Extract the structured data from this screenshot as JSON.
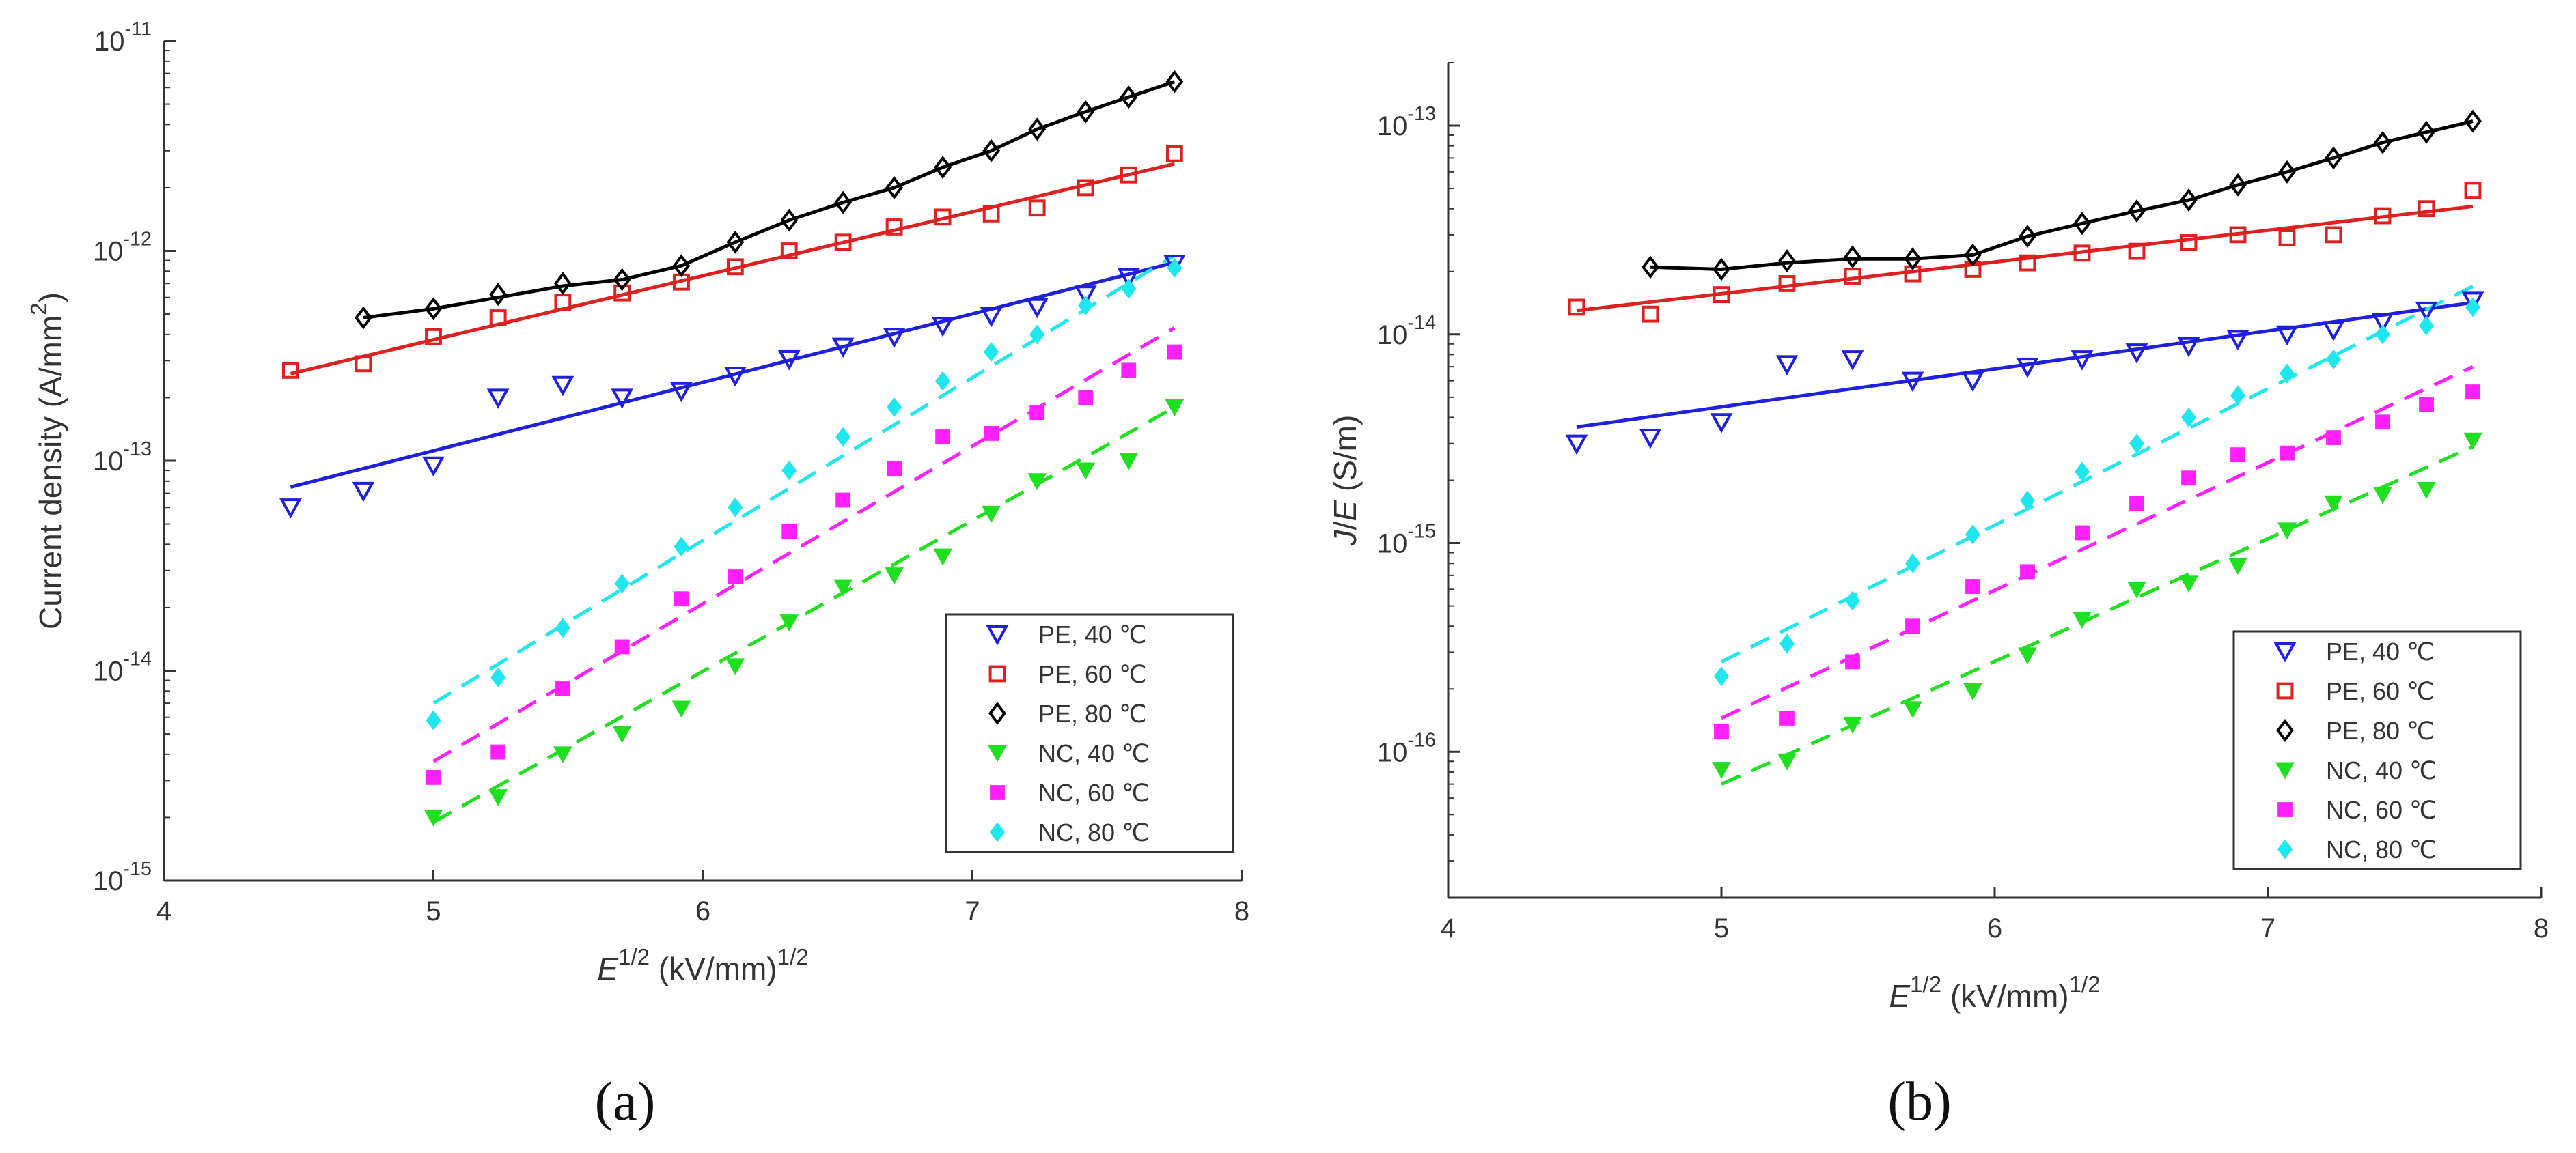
{
  "chart_data": [
    {
      "id": "a",
      "type": "scatter",
      "caption": "(a)",
      "title": "",
      "xlabel": {
        "base": "E",
        "sup": "1/2",
        "unit": " (kV/mm)",
        "unit_sup": "1/2"
      },
      "ylabel": {
        "text": "Current density (A/mm",
        "sup": "2",
        "close": ")",
        "italic_parts": []
      },
      "xlim": [
        4,
        8
      ],
      "ylim": [
        1e-15,
        1e-11
      ],
      "yscale": "log",
      "xticks": [
        4,
        5,
        6,
        7,
        8
      ],
      "xtick_labels": [
        "4",
        "5",
        "6",
        "7",
        "8"
      ],
      "yticks": [
        {
          "value": 1e-15,
          "base": "10",
          "exp": "-15"
        },
        {
          "value": 1e-14,
          "base": "10",
          "exp": "-14"
        },
        {
          "value": 1e-13,
          "base": "10",
          "exp": "-13"
        },
        {
          "value": 1e-12,
          "base": "10",
          "exp": "-12"
        },
        {
          "value": 1e-11,
          "base": "10",
          "exp": "-11"
        }
      ],
      "legend": {
        "position": "bottom-right",
        "entries": [
          "PE, 40 ℃",
          "PE, 60 ℃",
          "PE, 80 ℃",
          "NC, 40 ℃",
          "NC, 60 ℃",
          "NC, 80 ℃"
        ]
      },
      "series": [
        {
          "name": "PE, 40 ℃",
          "color": "#1f1fe0",
          "marker": "triangle-down-open",
          "line": "solid",
          "x": [
            4.47,
            4.74,
            5.0,
            5.24,
            5.48,
            5.7,
            5.92,
            6.12,
            6.32,
            6.52,
            6.71,
            6.89,
            7.07,
            7.24,
            7.42,
            7.58,
            7.75
          ],
          "y": [
            6e-14,
            7.2e-14,
            9.5e-14,
            2e-13,
            2.3e-13,
            2e-13,
            2.15e-13,
            2.55e-13,
            3.05e-13,
            3.5e-13,
            3.9e-13,
            4.4e-13,
            4.9e-13,
            5.4e-13,
            6.2e-13,
            7.5e-13,
            8.7e-13
          ],
          "fit": {
            "x": [
              4.47,
              7.75
            ],
            "y": [
              7.5e-14,
              8.8e-13
            ]
          }
        },
        {
          "name": "PE, 60 ℃",
          "color": "#e01f1f",
          "marker": "square-open",
          "line": "solid",
          "x": [
            4.47,
            4.74,
            5.0,
            5.24,
            5.48,
            5.7,
            5.92,
            6.12,
            6.32,
            6.52,
            6.71,
            6.89,
            7.07,
            7.24,
            7.42,
            7.58,
            7.75
          ],
          "y": [
            2.7e-13,
            2.9e-13,
            3.9e-13,
            4.8e-13,
            5.7e-13,
            6.3e-13,
            7.1e-13,
            8.4e-13,
            1e-12,
            1.1e-12,
            1.3e-12,
            1.45e-12,
            1.5e-12,
            1.6e-12,
            2e-12,
            2.3e-12,
            2.9e-12
          ],
          "fit": {
            "x": [
              4.47,
              7.75
            ],
            "y": [
              2.6e-13,
              2.6e-12
            ]
          }
        },
        {
          "name": "PE, 80 ℃",
          "color": "#000000",
          "marker": "diamond-open",
          "line": "solid",
          "x": [
            4.74,
            5.0,
            5.24,
            5.48,
            5.7,
            5.92,
            6.12,
            6.32,
            6.52,
            6.71,
            6.89,
            7.07,
            7.24,
            7.42,
            7.58,
            7.75
          ],
          "y": [
            4.8e-13,
            5.3e-13,
            6.2e-13,
            7e-13,
            7.3e-13,
            8.5e-13,
            1.1e-12,
            1.4e-12,
            1.7e-12,
            2e-12,
            2.5e-12,
            3e-12,
            3.8e-12,
            4.6e-12,
            5.4e-12,
            6.4e-12
          ],
          "fit": {
            "x": [
              4.74,
              5.0,
              5.24,
              5.48,
              5.7,
              5.92,
              6.12,
              6.32,
              6.52,
              6.71,
              6.89,
              7.07,
              7.24,
              7.42,
              7.58,
              7.75
            ],
            "y": [
              4.8e-13,
              5.3e-13,
              6e-13,
              6.8e-13,
              7.3e-13,
              8.5e-13,
              1.1e-12,
              1.4e-12,
              1.7e-12,
              2e-12,
              2.5e-12,
              3e-12,
              3.8e-12,
              4.6e-12,
              5.4e-12,
              6.4e-12
            ]
          }
        },
        {
          "name": "NC, 40 ℃",
          "color": "#1ee01e",
          "marker": "triangle-down-filled",
          "line": "dashed",
          "x": [
            5.0,
            5.24,
            5.48,
            5.7,
            5.92,
            6.12,
            6.32,
            6.52,
            6.71,
            6.89,
            7.07,
            7.24,
            7.42,
            7.58,
            7.75
          ],
          "y": [
            2e-15,
            2.5e-15,
            4e-15,
            5e-15,
            6.6e-15,
            1.05e-14,
            1.7e-14,
            2.5e-14,
            2.85e-14,
            3.5e-14,
            5.6e-14,
            8e-14,
            9e-14,
            1e-13,
            1.8e-13
          ],
          "fit": {
            "x": [
              5.0,
              7.75
            ],
            "y": [
              1.9e-15,
              1.8e-13
            ]
          }
        },
        {
          "name": "NC, 60 ℃",
          "color": "#ff1fff",
          "marker": "square-filled",
          "line": "dashed",
          "x": [
            5.0,
            5.24,
            5.48,
            5.7,
            5.92,
            6.12,
            6.32,
            6.52,
            6.71,
            6.89,
            7.07,
            7.24,
            7.42,
            7.58,
            7.75
          ],
          "y": [
            3.1e-15,
            4.1e-15,
            8.2e-15,
            1.3e-14,
            2.2e-14,
            2.8e-14,
            4.6e-14,
            6.5e-14,
            9.2e-14,
            1.3e-13,
            1.35e-13,
            1.7e-13,
            2e-13,
            2.7e-13,
            3.3e-13
          ],
          "fit": {
            "x": [
              5.0,
              7.75
            ],
            "y": [
              3.7e-15,
              4.3e-13
            ]
          }
        },
        {
          "name": "NC, 80 ℃",
          "color": "#1ee8ee",
          "marker": "diamond-filled",
          "line": "dashed",
          "x": [
            5.0,
            5.24,
            5.48,
            5.7,
            5.92,
            6.12,
            6.32,
            6.52,
            6.71,
            6.89,
            7.07,
            7.24,
            7.42,
            7.58,
            7.75
          ],
          "y": [
            5.8e-15,
            9.3e-15,
            1.6e-14,
            2.6e-14,
            3.9e-14,
            6e-14,
            9e-14,
            1.3e-13,
            1.8e-13,
            2.4e-13,
            3.3e-13,
            4e-13,
            5.5e-13,
            6.6e-13,
            8.3e-13
          ],
          "fit": {
            "x": [
              5.0,
              7.75
            ],
            "y": [
              7e-15,
              9.5e-13
            ]
          }
        }
      ]
    },
    {
      "id": "b",
      "type": "scatter",
      "caption": "(b)",
      "title": "",
      "xlabel": {
        "base": "E",
        "sup": "1/2",
        "unit": " (kV/mm)",
        "unit_sup": "1/2"
      },
      "ylabel": {
        "text": "J/E (S/m)",
        "italic_parts": [
          "J",
          "E"
        ]
      },
      "xlim": [
        4,
        8
      ],
      "ylim": [
        2e-17,
        2e-13
      ],
      "yscale": "log",
      "xticks": [
        4,
        5,
        6,
        7,
        8
      ],
      "xtick_labels": [
        "4",
        "5",
        "6",
        "7",
        "8"
      ],
      "yticks": [
        {
          "value": 1e-16,
          "base": "10",
          "exp": "-16"
        },
        {
          "value": 1e-15,
          "base": "10",
          "exp": "-15"
        },
        {
          "value": 1e-14,
          "base": "10",
          "exp": "-14"
        },
        {
          "value": 1e-13,
          "base": "10",
          "exp": "-13"
        }
      ],
      "legend": {
        "position": "bottom-right",
        "entries": [
          "PE, 40 ℃",
          "PE, 60 ℃",
          "PE, 80 ℃",
          "NC, 40 ℃",
          "NC, 60 ℃",
          "NC, 80 ℃"
        ]
      },
      "series": [
        {
          "name": "PE, 40 ℃",
          "color": "#1f1fe0",
          "marker": "triangle-down-open",
          "line": "solid",
          "x": [
            4.47,
            4.74,
            5.0,
            5.24,
            5.48,
            5.7,
            5.92,
            6.12,
            6.32,
            6.52,
            6.71,
            6.89,
            7.07,
            7.24,
            7.42,
            7.58,
            7.75
          ],
          "y": [
            3e-15,
            3.2e-15,
            3.8e-15,
            7.2e-15,
            7.6e-15,
            6e-15,
            6e-15,
            7e-15,
            7.6e-15,
            8.2e-15,
            8.8e-15,
            9.5e-15,
            1e-14,
            1.05e-14,
            1.15e-14,
            1.3e-14,
            1.45e-14
          ],
          "fit": {
            "x": [
              4.47,
              7.75
            ],
            "y": [
              3.6e-15,
              1.42e-14
            ]
          }
        },
        {
          "name": "PE, 60 ℃",
          "color": "#e01f1f",
          "marker": "square-open",
          "line": "solid",
          "x": [
            4.47,
            4.74,
            5.0,
            5.24,
            5.48,
            5.7,
            5.92,
            6.12,
            6.32,
            6.52,
            6.71,
            6.89,
            7.07,
            7.24,
            7.42,
            7.58,
            7.75
          ],
          "y": [
            1.35e-14,
            1.25e-14,
            1.55e-14,
            1.75e-14,
            1.9e-14,
            1.95e-14,
            2.05e-14,
            2.2e-14,
            2.45e-14,
            2.5e-14,
            2.75e-14,
            3e-14,
            2.9e-14,
            3e-14,
            3.7e-14,
            4e-14,
            4.9e-14
          ],
          "fit": {
            "x": [
              4.47,
              7.75
            ],
            "y": [
              1.3e-14,
              4.1e-14
            ]
          }
        },
        {
          "name": "PE, 80 ℃",
          "color": "#000000",
          "marker": "diamond-open",
          "line": "solid",
          "x": [
            4.74,
            5.0,
            5.24,
            5.48,
            5.7,
            5.92,
            6.12,
            6.32,
            6.52,
            6.71,
            6.89,
            7.07,
            7.24,
            7.42,
            7.58,
            7.75
          ],
          "y": [
            2.1e-14,
            2.05e-14,
            2.25e-14,
            2.35e-14,
            2.3e-14,
            2.4e-14,
            2.95e-14,
            3.4e-14,
            3.9e-14,
            4.4e-14,
            5.2e-14,
            6e-14,
            7e-14,
            8.3e-14,
            9.3e-14,
            1.05e-13
          ],
          "fit": {
            "x": [
              4.74,
              5.0,
              5.24,
              5.48,
              5.7,
              5.92,
              6.12,
              6.32,
              6.52,
              6.71,
              6.89,
              7.07,
              7.24,
              7.42,
              7.58,
              7.75
            ],
            "y": [
              2.1e-14,
              2.05e-14,
              2.2e-14,
              2.3e-14,
              2.3e-14,
              2.4e-14,
              2.95e-14,
              3.4e-14,
              3.9e-14,
              4.4e-14,
              5.2e-14,
              6e-14,
              7e-14,
              8.3e-14,
              9.3e-14,
              1.05e-13
            ]
          }
        },
        {
          "name": "NC, 40 ℃",
          "color": "#1ee01e",
          "marker": "triangle-down-filled",
          "line": "dashed",
          "x": [
            5.0,
            5.24,
            5.48,
            5.7,
            5.92,
            6.12,
            6.32,
            6.52,
            6.71,
            6.89,
            7.07,
            7.24,
            7.42,
            7.58,
            7.75
          ],
          "y": [
            8.2e-17,
            9e-17,
            1.35e-16,
            1.6e-16,
            1.95e-16,
            2.9e-16,
            4.3e-16,
            6e-16,
            6.4e-16,
            7.8e-16,
            1.15e-15,
            1.55e-15,
            1.7e-15,
            1.8e-15,
            3.1e-15
          ],
          "fit": {
            "x": [
              5.0,
              7.75
            ],
            "y": [
              7e-17,
              2.9e-15
            ]
          }
        },
        {
          "name": "NC, 60 ℃",
          "color": "#ff1fff",
          "marker": "square-filled",
          "line": "dashed",
          "x": [
            5.0,
            5.24,
            5.48,
            5.7,
            5.92,
            6.12,
            6.32,
            6.52,
            6.71,
            6.89,
            7.07,
            7.24,
            7.42,
            7.58,
            7.75
          ],
          "y": [
            1.25e-16,
            1.45e-16,
            2.7e-16,
            4e-16,
            6.2e-16,
            7.3e-16,
            1.12e-15,
            1.55e-15,
            2.05e-15,
            2.65e-15,
            2.7e-15,
            3.2e-15,
            3.8e-15,
            4.6e-15,
            5.3e-15
          ],
          "fit": {
            "x": [
              5.0,
              7.75
            ],
            "y": [
              1.45e-16,
              7e-15
            ]
          }
        },
        {
          "name": "NC, 80 ℃",
          "color": "#1ee8ee",
          "marker": "diamond-filled",
          "line": "dashed",
          "x": [
            5.0,
            5.24,
            5.48,
            5.7,
            5.92,
            6.12,
            6.32,
            6.52,
            6.71,
            6.89,
            7.07,
            7.24,
            7.42,
            7.58,
            7.75
          ],
          "y": [
            2.3e-16,
            3.3e-16,
            5.3e-16,
            8e-16,
            1.1e-15,
            1.6e-15,
            2.2e-15,
            3e-15,
            4e-15,
            5.1e-15,
            6.5e-15,
            7.6e-15,
            1e-14,
            1.1e-14,
            1.35e-14
          ],
          "fit": {
            "x": [
              5.0,
              7.75
            ],
            "y": [
              2.7e-16,
              1.7e-14
            ]
          }
        }
      ]
    }
  ]
}
